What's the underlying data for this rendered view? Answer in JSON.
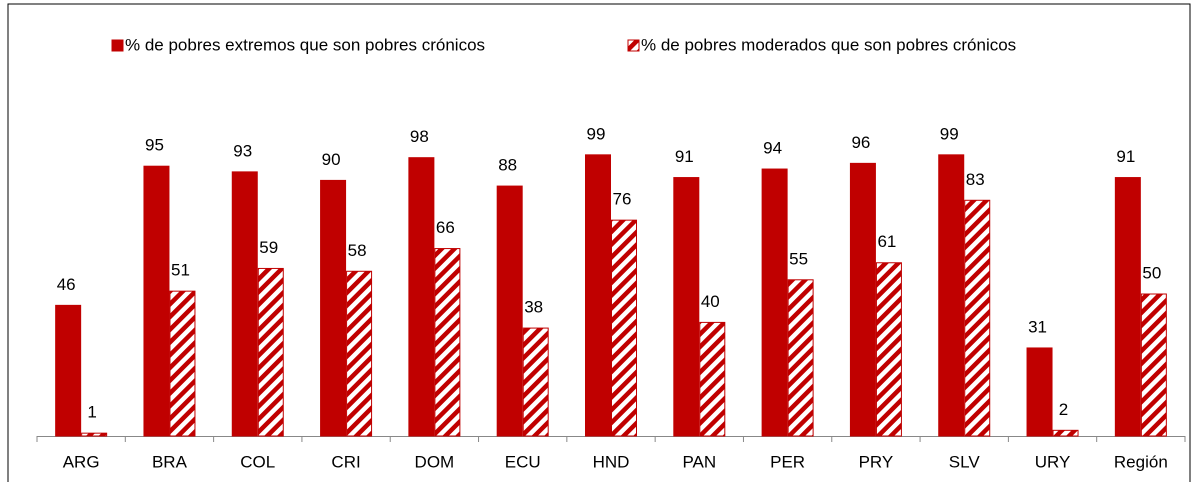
{
  "chart_data": {
    "type": "bar",
    "categories": [
      "ARG",
      "BRA",
      "COL",
      "CRI",
      "DOM",
      "ECU",
      "HND",
      "PAN",
      "PER",
      "PRY",
      "SLV",
      "URY",
      "Región"
    ],
    "series": [
      {
        "name": "% de pobres extremos que son pobres crónicos",
        "color": "#c00000",
        "pattern": "solid",
        "values": [
          46,
          95,
          93,
          90,
          98,
          88,
          99,
          91,
          94,
          96,
          99,
          31,
          91
        ]
      },
      {
        "name": "% de pobres moderados que son pobres crónicos",
        "color": "#c00000",
        "pattern": "hatched",
        "values": [
          1,
          51,
          59,
          58,
          66,
          38,
          76,
          40,
          55,
          61,
          83,
          2,
          50
        ]
      }
    ],
    "ylim": [
      0,
      100
    ],
    "legend": "top",
    "data_labels": true
  }
}
